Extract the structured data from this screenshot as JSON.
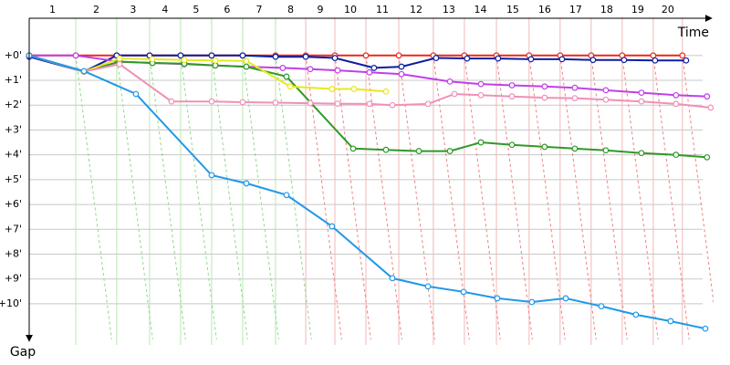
{
  "chart_data": {
    "type": "line",
    "x_label": "Time",
    "y_label": "Gap",
    "laps": [
      1,
      2,
      3,
      4,
      5,
      6,
      7,
      8,
      9,
      10,
      11,
      12,
      13,
      14,
      15,
      16,
      17,
      18,
      19,
      20
    ],
    "lap_times": [
      0,
      22.5,
      42.3,
      58.2,
      73.2,
      88.2,
      103.2,
      119.1,
      133.7,
      147.8,
      162.8,
      178.7,
      195.4,
      210.4,
      225.9,
      241.7,
      256.7,
      271.7,
      286.7,
      301.7,
      315.8
    ],
    "xlim": [
      0,
      330
    ],
    "ylim": [
      -1.5,
      11.4
    ],
    "yticks": [
      {
        "value": 0,
        "label": "+0'"
      },
      {
        "value": 1,
        "label": "+1'"
      },
      {
        "value": 2,
        "label": "+2'"
      },
      {
        "value": 3,
        "label": "+3'"
      },
      {
        "value": 4,
        "label": "+4'"
      },
      {
        "value": 5,
        "label": "+5'"
      },
      {
        "value": 6,
        "label": "+6'"
      },
      {
        "value": 7,
        "label": "+7'"
      },
      {
        "value": 8,
        "label": "+8'"
      },
      {
        "value": 9,
        "label": "+9'"
      },
      {
        "value": 10,
        "label": "+10'"
      }
    ],
    "series": [
      {
        "color": "#e82a1e",
        "x": [
          0,
          22.5,
          42.3,
          58.2,
          73.2,
          88.2,
          103.2,
          119.1,
          133.7,
          147.8,
          162.8,
          178.7,
          195.4,
          210.4,
          225.9,
          241.7,
          256.7,
          271.7,
          286.7,
          301.7,
          315.8
        ],
        "values": [
          0,
          0,
          0,
          0,
          0,
          0,
          0,
          0,
          0,
          0,
          0,
          0,
          0,
          0,
          0,
          0,
          0,
          0,
          0,
          0,
          0
        ]
      },
      {
        "color": "#0b1fa0",
        "x": [
          0,
          26.5,
          42.3,
          58.2,
          73.2,
          88.2,
          103.2,
          119.1,
          133.7,
          147.8,
          166.7,
          180,
          196.7,
          211.7,
          226.7,
          242.6,
          257.6,
          272.6,
          287.6,
          302.6,
          317.6
        ],
        "values": [
          0.05,
          0.65,
          0,
          0,
          0,
          0,
          0,
          0.05,
          0.05,
          0.1,
          0.5,
          0.45,
          0.1,
          0.12,
          0.12,
          0.15,
          0.15,
          0.18,
          0.18,
          0.2,
          0.2
        ]
      },
      {
        "color": "#c040e8",
        "x": [
          0,
          22.5,
          43.7,
          59.6,
          75,
          90,
          105,
          122.6,
          135.9,
          149.1,
          164.5,
          180,
          203.4,
          218.4,
          233.4,
          249.2,
          263.8,
          278.8,
          296,
          312.7,
          327.7
        ],
        "values": [
          0,
          0,
          0.25,
          0.3,
          0.35,
          0.4,
          0.45,
          0.5,
          0.55,
          0.6,
          0.68,
          0.75,
          1.05,
          1.15,
          1.2,
          1.25,
          1.3,
          1.4,
          1.5,
          1.6,
          1.65
        ]
      },
      {
        "color": "#2e9a28",
        "x": [
          0,
          26.5,
          43.7,
          59.6,
          75,
          90,
          105,
          124.4,
          156.6,
          172.5,
          188.4,
          203.4,
          218.4,
          233.4,
          249.2,
          263.8,
          278.8,
          296,
          312.7,
          327.7
        ],
        "values": [
          0,
          0.65,
          0.25,
          0.3,
          0.33,
          0.4,
          0.45,
          0.85,
          3.75,
          3.8,
          3.85,
          3.85,
          3.5,
          3.6,
          3.68,
          3.75,
          3.82,
          3.93,
          4.0,
          4.1
        ]
      },
      {
        "color": "#e8e820",
        "x": [
          0,
          26.5,
          43.7,
          59.6,
          75,
          90,
          105,
          126.2,
          146.4,
          157,
          172.5
        ],
        "values": [
          0,
          0.65,
          0.12,
          0.15,
          0.18,
          0.2,
          0.22,
          1.25,
          1.35,
          1.35,
          1.45
        ]
      },
      {
        "color": "#f090b8",
        "x": [
          0,
          26.5,
          43.7,
          68.8,
          88.2,
          103.2,
          119.1,
          135.9,
          149.1,
          164.5,
          175.6,
          192.8,
          205.6,
          218.4,
          233.4,
          249.2,
          263.8,
          278.8,
          296,
          312.7,
          329.5
        ],
        "values": [
          0,
          0.65,
          0.35,
          1.85,
          1.85,
          1.88,
          1.9,
          1.92,
          1.94,
          1.95,
          2.0,
          1.95,
          1.55,
          1.6,
          1.65,
          1.7,
          1.72,
          1.78,
          1.85,
          1.95,
          2.1
        ]
      },
      {
        "color": "#2098e8",
        "x": [
          0,
          26.5,
          51.6,
          88.2,
          105,
          124.4,
          146.4,
          175.6,
          192.8,
          210,
          226.3,
          243,
          259.4,
          276.6,
          293.3,
          310.1,
          326.9
        ],
        "values": [
          0,
          0.63,
          1.55,
          4.82,
          5.15,
          5.62,
          6.88,
          8.97,
          9.3,
          9.52,
          9.78,
          9.93,
          9.78,
          10.1,
          10.44,
          10.7,
          11.0
        ]
      }
    ]
  }
}
